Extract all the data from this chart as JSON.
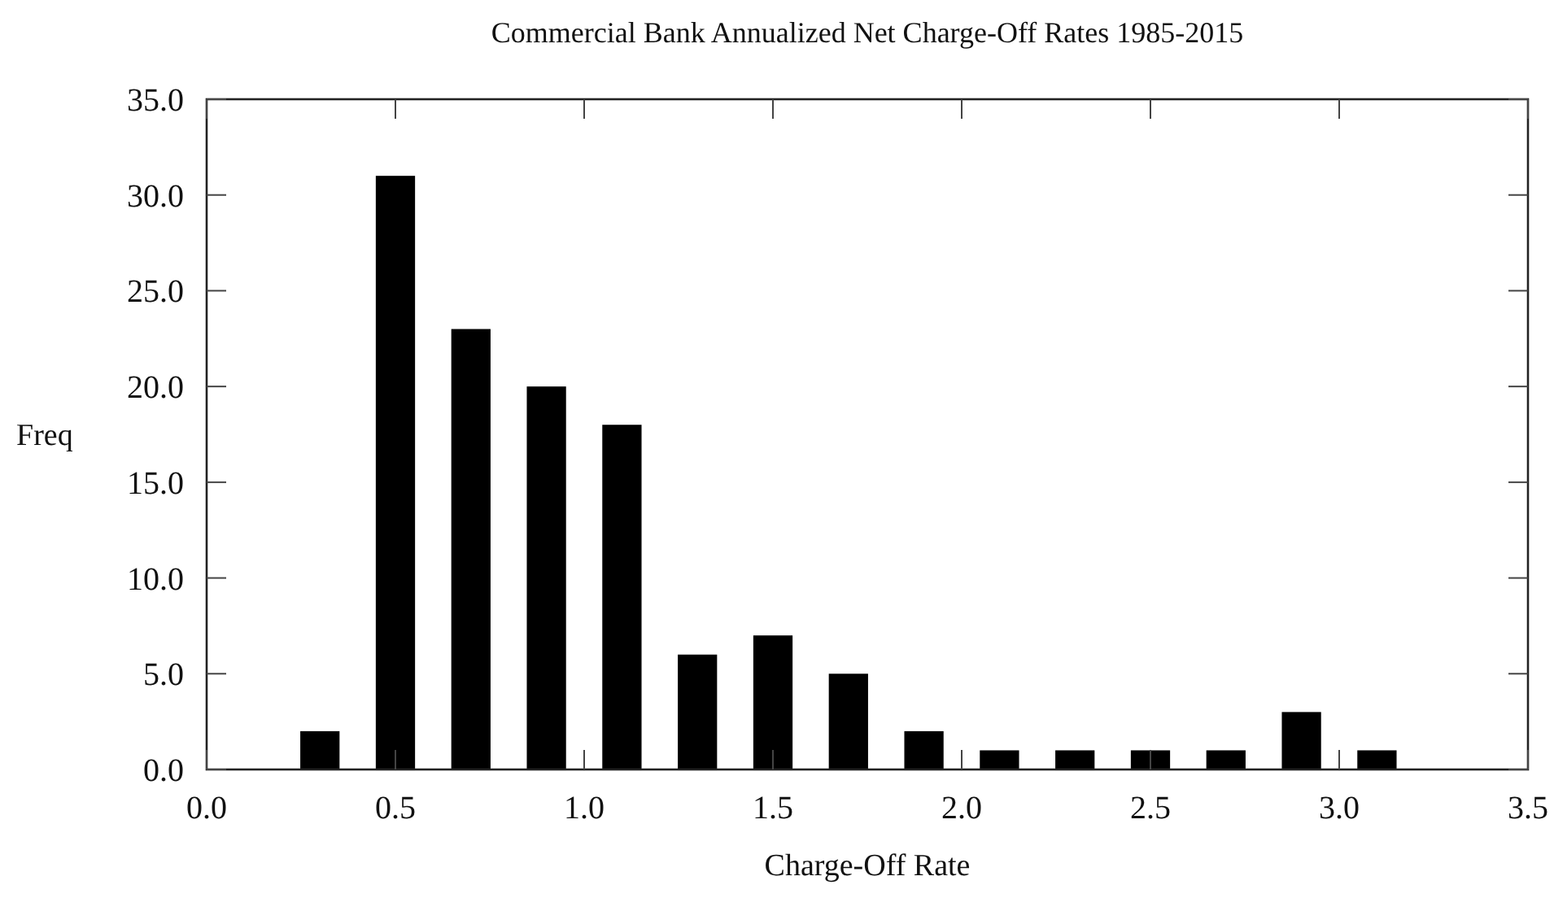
{
  "chart_data": {
    "type": "bar",
    "title": "Commercial Bank Annualized Net Charge-Off Rates 1985-2015",
    "xlabel": "Charge-Off Rate",
    "ylabel": "Freq",
    "x": [
      0.3,
      0.5,
      0.7,
      0.9,
      1.1,
      1.3,
      1.5,
      1.7,
      1.9,
      2.1,
      2.3,
      2.5,
      2.7,
      2.9,
      3.1
    ],
    "values": [
      2,
      31,
      23,
      20,
      18,
      6,
      7,
      5,
      2,
      1,
      1,
      1,
      1,
      3,
      1
    ],
    "color": "#000000",
    "xlim": [
      0,
      3.5
    ],
    "xticks": [
      {
        "value": 0,
        "label": "0.0"
      },
      0.5,
      {
        "value": 1,
        "label": "1.0"
      },
      1.5,
      {
        "value": 2,
        "label": "2.0"
      },
      2.5,
      {
        "value": 3,
        "label": "3.0"
      },
      3.5
    ],
    "ylim": [
      0,
      35
    ],
    "yticks": [
      {
        "value": 0,
        "label": "0.0"
      },
      {
        "value": 5,
        "label": "5.0"
      },
      {
        "value": 10,
        "label": "10.0"
      },
      {
        "value": 15,
        "label": "15.0"
      },
      {
        "value": 20,
        "label": "20.0"
      },
      {
        "value": 25,
        "label": "25.0"
      },
      {
        "value": 30,
        "label": "30.0"
      },
      {
        "value": 35,
        "label": "35.0"
      }
    ],
    "grid": false
  }
}
